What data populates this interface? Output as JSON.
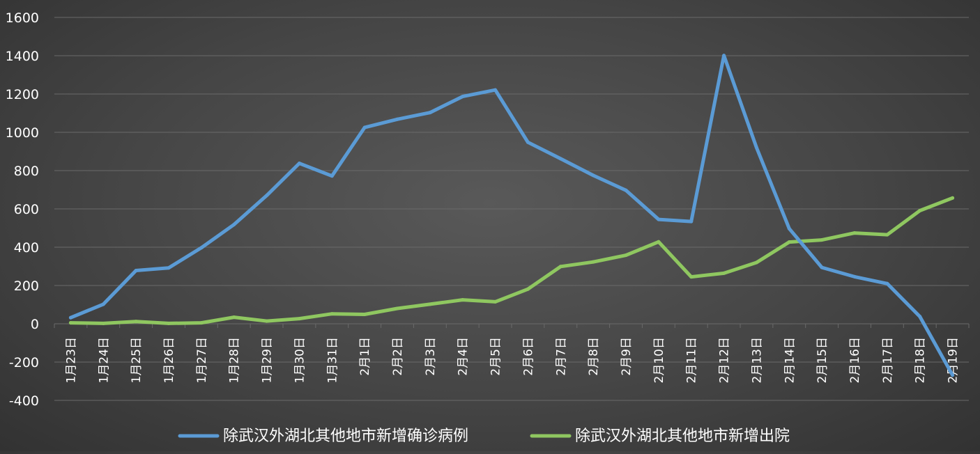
{
  "chart_data": {
    "type": "line",
    "title": "",
    "xlabel": "",
    "ylabel": "",
    "ylim": [
      -400,
      1600
    ],
    "y_ticks": [
      1600,
      1400,
      1200,
      1000,
      800,
      600,
      400,
      200,
      0,
      -200,
      -400
    ],
    "grid": true,
    "legend_position": "bottom",
    "categories": [
      "1月23日",
      "1月24日",
      "1月25日",
      "1月26日",
      "1月27日",
      "1月28日",
      "1月29日",
      "1月30日",
      "1月31日",
      "2月1日",
      "2月2日",
      "2月3日",
      "2月4日",
      "2月5日",
      "2月6日",
      "2月7日",
      "2月8日",
      "2月9日",
      "2月10日",
      "2月11日",
      "2月12日",
      "2月13日",
      "2月14日",
      "2月15日",
      "2月16日",
      "2月17日",
      "2月18日",
      "2月19日"
    ],
    "series": [
      {
        "name": "除武汉外湖北其他地市新增确诊病例",
        "color": "#5b9bd5",
        "values": [
          32,
          102,
          278,
          292,
          397,
          518,
          670,
          838,
          772,
          1025,
          1068,
          1103,
          1187,
          1221,
          948,
          862,
          775,
          697,
          545,
          534,
          1401,
          920,
          497,
          294,
          246,
          210,
          38,
          -268
        ]
      },
      {
        "name": "除武汉外湖北其他地市新增出院",
        "color": "#8fc760",
        "values": [
          5,
          2,
          12,
          2,
          5,
          34,
          14,
          27,
          52,
          49,
          80,
          102,
          125,
          115,
          181,
          299,
          323,
          358,
          428,
          245,
          264,
          320,
          427,
          438,
          474,
          465,
          591,
          657
        ]
      }
    ]
  },
  "colors": {
    "grid": "#6a6a6a",
    "text": "#ffffff"
  }
}
